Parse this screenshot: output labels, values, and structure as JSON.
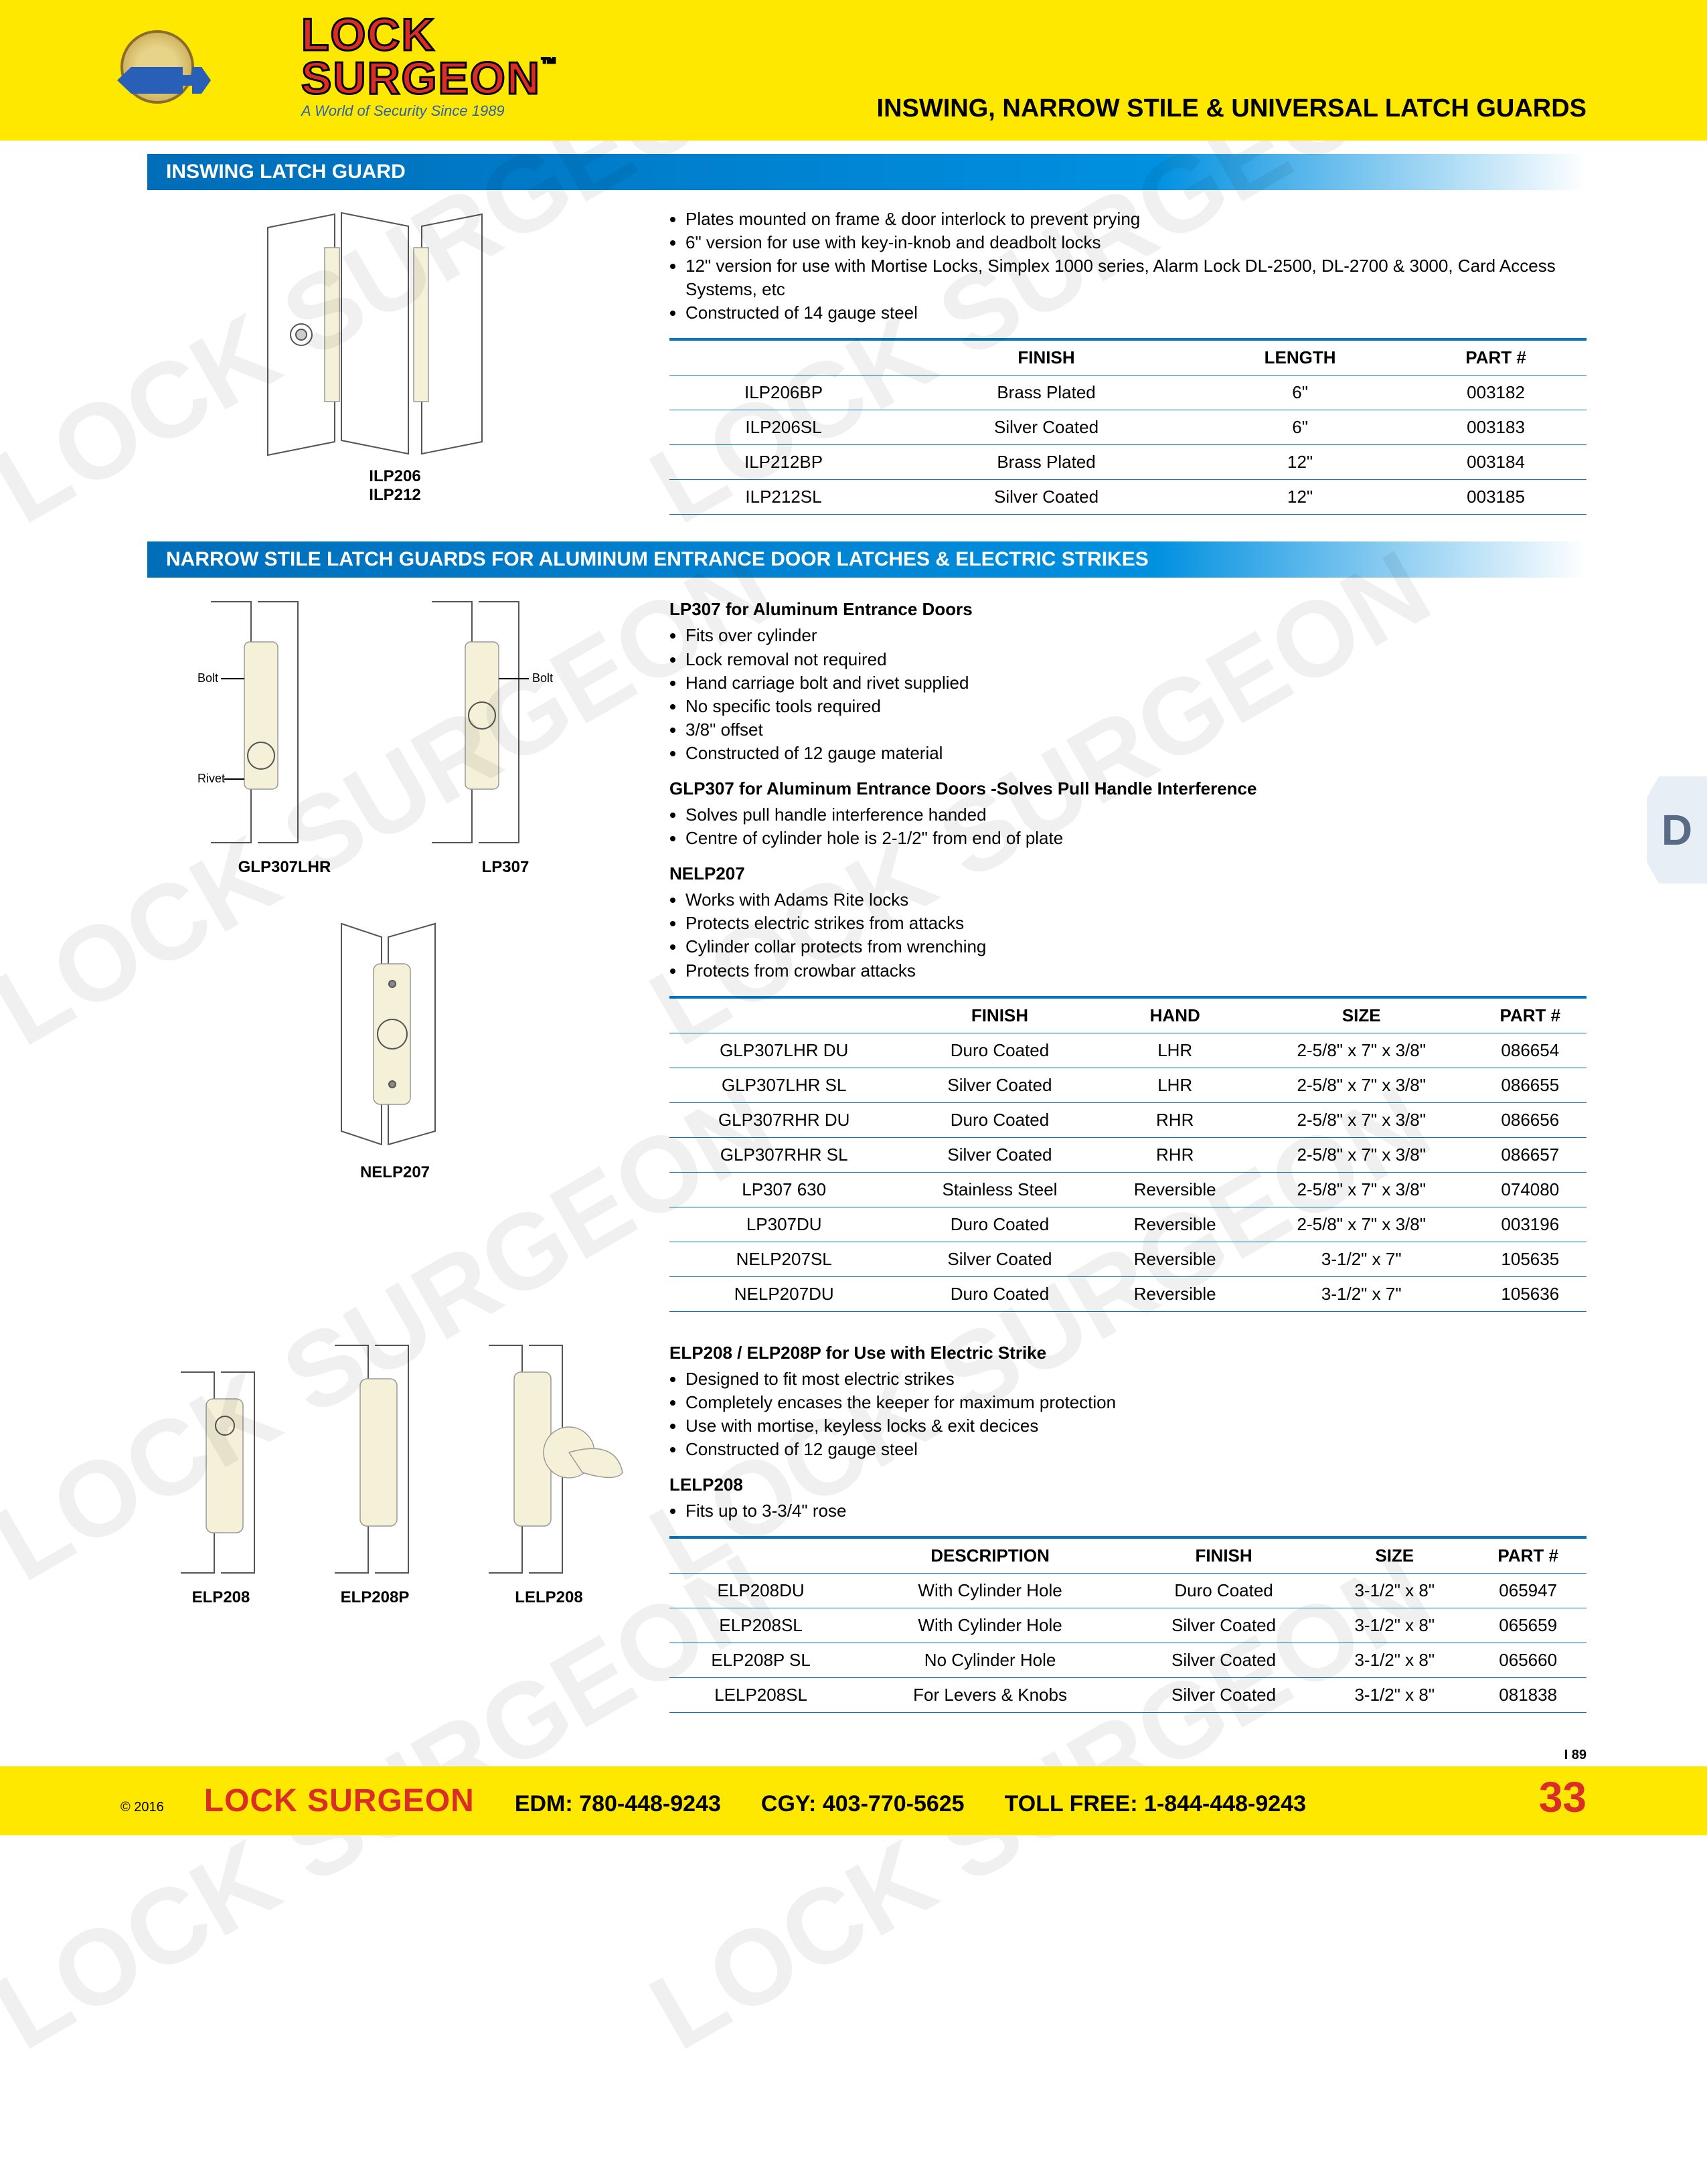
{
  "header": {
    "brand_line1": "LOCK",
    "brand_line2": "SURGEON",
    "tagline": "A World of Security     Since 1989",
    "trademark": "™",
    "page_title": "INSWING, NARROW STILE & UNIVERSAL LATCH GUARDS"
  },
  "side_tab": "D",
  "watermark": "LOCK SURGEON",
  "colors": {
    "yellow": "#ffe800",
    "red": "#da2d28",
    "blue_dark": "#006db8",
    "blue_light": "#0090e0",
    "border_blue": "#0077c0",
    "tab_bg": "#e8eef6",
    "tab_text": "#5a6b85"
  },
  "section1": {
    "title": "INSWING LATCH GUARD",
    "diagram_labels": [
      "ILP206",
      "ILP212"
    ],
    "bullets": [
      "Plates mounted  on frame & door interlock to prevent prying",
      "6\" version for use with key-in-knob and deadbolt locks",
      "12\" version for use with Mortise Locks, Simplex 1000 series, Alarm Lock DL-2500, DL-2700 & 3000, Card Access Systems, etc",
      "Constructed of 14 gauge steel"
    ],
    "table": {
      "columns": [
        "",
        "FINISH",
        "LENGTH",
        "PART #"
      ],
      "rows": [
        [
          "ILP206BP",
          "Brass Plated",
          "6\"",
          "003182"
        ],
        [
          "ILP206SL",
          "Silver Coated",
          "6\"",
          "003183"
        ],
        [
          "ILP212BP",
          "Brass Plated",
          "12\"",
          "003184"
        ],
        [
          "ILP212SL",
          "Silver Coated",
          "12\"",
          "003185"
        ]
      ]
    }
  },
  "section2": {
    "title": "NARROW STILE LATCH GUARDS FOR ALUMINUM ENTRANCE DOOR LATCHES & ELECTRIC STRIKES",
    "group1": {
      "diagram_labels": [
        "GLP307LHR",
        "LP307"
      ],
      "subhead1": "LP307 for Aluminum Entrance Doors",
      "bullets1": [
        "Fits over cylinder",
        "Lock removal not required",
        "Hand carriage bolt and rivet supplied",
        "No specific tools required",
        "3/8\" offset",
        "Constructed of 12 gauge material"
      ],
      "subhead2": "GLP307 for Aluminum Entrance Doors -Solves Pull Handle Interference",
      "bullets2": [
        "Solves pull handle interference handed",
        "Centre of cylinder hole is 2-1/2\" from end of plate"
      ],
      "subhead3": "NELP207",
      "bullets3": [
        "Works with Adams Rite locks",
        "Protects electric strikes from attacks",
        "Cylinder collar protects from wrenching",
        "Protects from crowbar attacks"
      ],
      "diagram_label_nelp": "NELP207",
      "table": {
        "columns": [
          "",
          "FINISH",
          "HAND",
          "SIZE",
          "PART #"
        ],
        "rows": [
          [
            "GLP307LHR DU",
            "Duro Coated",
            "LHR",
            "2-5/8\" x 7\" x 3/8\"",
            "086654"
          ],
          [
            "GLP307LHR SL",
            "Silver Coated",
            "LHR",
            "2-5/8\" x 7\" x 3/8\"",
            "086655"
          ],
          [
            "GLP307RHR DU",
            "Duro Coated",
            "RHR",
            "2-5/8\" x 7\" x 3/8\"",
            "086656"
          ],
          [
            "GLP307RHR SL",
            "Silver Coated",
            "RHR",
            "2-5/8\" x 7\" x 3/8\"",
            "086657"
          ],
          [
            "LP307 630",
            "Stainless Steel",
            "Reversible",
            "2-5/8\" x 7\" x 3/8\"",
            "074080"
          ],
          [
            "LP307DU",
            "Duro Coated",
            "Reversible",
            "2-5/8\" x 7\" x 3/8\"",
            "003196"
          ],
          [
            "NELP207SL",
            "Silver Coated",
            "Reversible",
            "3-1/2\" x 7\"",
            "105635"
          ],
          [
            "NELP207DU",
            "Duro Coated",
            "Reversible",
            "3-1/2\" x 7\"",
            "105636"
          ]
        ]
      }
    },
    "group2": {
      "diagram_labels": [
        "ELP208",
        "ELP208P",
        "LELP208"
      ],
      "subhead1": "ELP208 / ELP208P for Use with Electric Strike",
      "bullets1": [
        "Designed to fit most electric strikes",
        "Completely encases the keeper for maximum protection",
        "Use with mortise, keyless locks & exit decices",
        "Constructed of 12 gauge steel"
      ],
      "subhead2": "LELP208",
      "bullets2": [
        "Fits up to 3-3/4\" rose"
      ],
      "table": {
        "columns": [
          "",
          "DESCRIPTION",
          "FINISH",
          "SIZE",
          "PART #"
        ],
        "rows": [
          [
            "ELP208DU",
            "With Cylinder Hole",
            "Duro Coated",
            "3-1/2\" x 8\"",
            "065947"
          ],
          [
            "ELP208SL",
            "With Cylinder Hole",
            "Silver Coated",
            "3-1/2\" x 8\"",
            "065659"
          ],
          [
            "ELP208P SL",
            "No Cylinder Hole",
            "Silver Coated",
            "3-1/2\" x 8\"",
            "065660"
          ],
          [
            "LELP208SL",
            "For Levers & Knobs",
            "Silver Coated",
            "3-1/2\" x 8\"",
            "081838"
          ]
        ]
      }
    }
  },
  "footer": {
    "copyright": "© 2016",
    "brand": "LOCK SURGEON",
    "edm_label": "EDM:",
    "edm_phone": "780-448-9243",
    "cgy_label": "CGY:",
    "cgy_phone": "403-770-5625",
    "toll_label": "TOLL FREE:",
    "toll_phone": "1-844-448-9243",
    "i89": "I  89",
    "page_num": "33"
  }
}
